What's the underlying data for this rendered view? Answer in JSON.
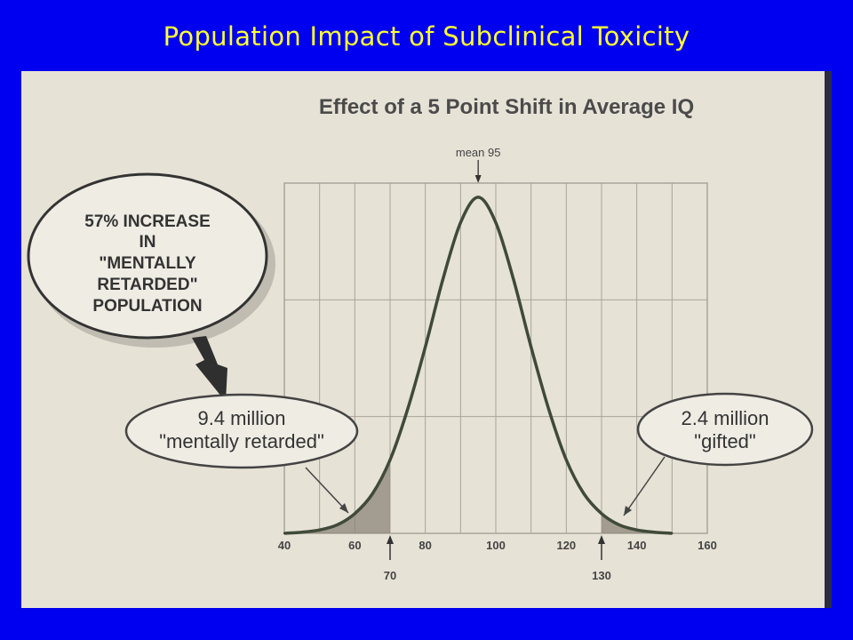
{
  "slide": {
    "title": "Population Impact of Subclinical Toxicity"
  },
  "chart_data": {
    "type": "line",
    "title": "Effect of a 5 Point Shift in Average IQ",
    "xlabel": "",
    "ylabel": "",
    "xlim": [
      40,
      160
    ],
    "x_ticks": [
      "40",
      "60",
      "80",
      "100",
      "120",
      "140",
      "160"
    ],
    "grid": true,
    "mean": 95,
    "mean_label": "mean 95",
    "series": [
      {
        "x": [
          40,
          45,
          50,
          55,
          60,
          65,
          70,
          75,
          80,
          85,
          90,
          95,
          100,
          105,
          110,
          115,
          120,
          125,
          130,
          135,
          140,
          145,
          150
        ],
        "y": [
          0.0,
          0.2,
          0.6,
          1.5,
          3.5,
          7.0,
          13.0,
          22.0,
          33.0,
          45.0,
          55.0,
          59.5,
          55.0,
          45.0,
          33.0,
          22.0,
          13.0,
          7.0,
          3.5,
          1.5,
          0.6,
          0.2,
          0.0
        ]
      }
    ],
    "shaded_regions": [
      {
        "from": 40,
        "to": 70,
        "label": "left-tail"
      },
      {
        "from": 130,
        "to": 150,
        "label": "right-tail"
      }
    ],
    "markers": [
      {
        "x": 70,
        "label": "70"
      },
      {
        "x": 130,
        "label": "130"
      }
    ],
    "annotations": {
      "increase_bubble": [
        "57% INCREASE",
        "IN",
        "\"MENTALLY",
        "RETARDED\"",
        "POPULATION"
      ],
      "left_callout": [
        "9.4 million",
        "\"mentally retarded\""
      ],
      "right_callout": [
        "2.4 million",
        "\"gifted\""
      ]
    }
  },
  "colors": {
    "slide_background": "#0000f0",
    "title_text": "#ffff33",
    "photo_background": "#e7e2d6",
    "curve": "#3f4a3a",
    "grid": "#a8a49a",
    "shade": "#8c8478"
  }
}
